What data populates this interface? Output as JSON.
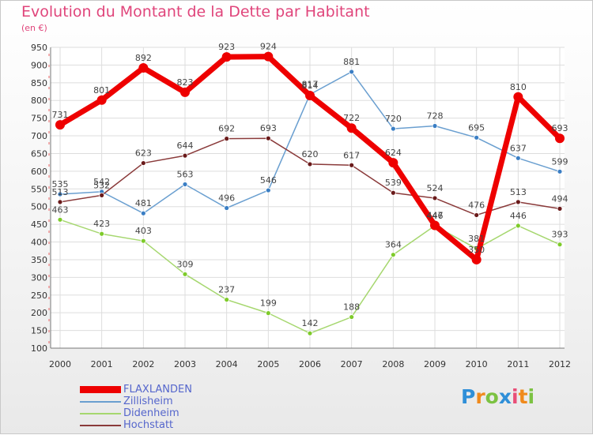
{
  "title": "Evolution du Montant de la Dette par Habitant",
  "unit": "(en €)",
  "logo_text": "Proxiti",
  "chart_data": {
    "type": "line",
    "title": "Evolution du Montant de la Dette par Habitant",
    "subtitle": "(en €)",
    "xlabel": "",
    "ylabel": "",
    "ylim": [
      100,
      950
    ],
    "yticks": [
      100,
      150,
      200,
      250,
      300,
      350,
      400,
      450,
      500,
      550,
      600,
      650,
      700,
      750,
      800,
      850,
      900,
      950
    ],
    "grid": true,
    "legend": "bottom-left",
    "x": [
      "2000",
      "2001",
      "2002",
      "2003",
      "2004",
      "2005",
      "2006",
      "2007",
      "2008",
      "2009",
      "2010",
      "2011",
      "2012"
    ],
    "series": [
      {
        "name": "FLAXLANDEN",
        "color": "#ee0000",
        "thick": true,
        "values": [
          731,
          801,
          892,
          823,
          923,
          924,
          814,
          722,
          624,
          447,
          350,
          810,
          693
        ]
      },
      {
        "name": "Zillisheim",
        "color": "#6a9fd0",
        "marker": "#3a7ec4",
        "values": [
          535,
          542,
          481,
          563,
          496,
          546,
          817,
          881,
          720,
          728,
          695,
          637,
          599
        ]
      },
      {
        "name": "Didenheim",
        "color": "#a6d76f",
        "marker": "#7ecb2a",
        "values": [
          463,
          423,
          403,
          309,
          237,
          199,
          142,
          188,
          364,
          446,
          381,
          446,
          393
        ]
      },
      {
        "name": "Hochstatt",
        "color": "#8a3a3a",
        "marker": "#6a1a1a",
        "values": [
          513,
          532,
          623,
          644,
          692,
          693,
          620,
          617,
          539,
          524,
          476,
          513,
          494
        ]
      }
    ]
  },
  "legend_items": [
    {
      "label": "FLAXLANDEN",
      "color": "#ee0000"
    },
    {
      "label": "Zillisheim",
      "color": "#6a9fd0"
    },
    {
      "label": "Didenheim",
      "color": "#a6d76f"
    },
    {
      "label": "Hochstatt",
      "color": "#8a3a3a"
    }
  ]
}
